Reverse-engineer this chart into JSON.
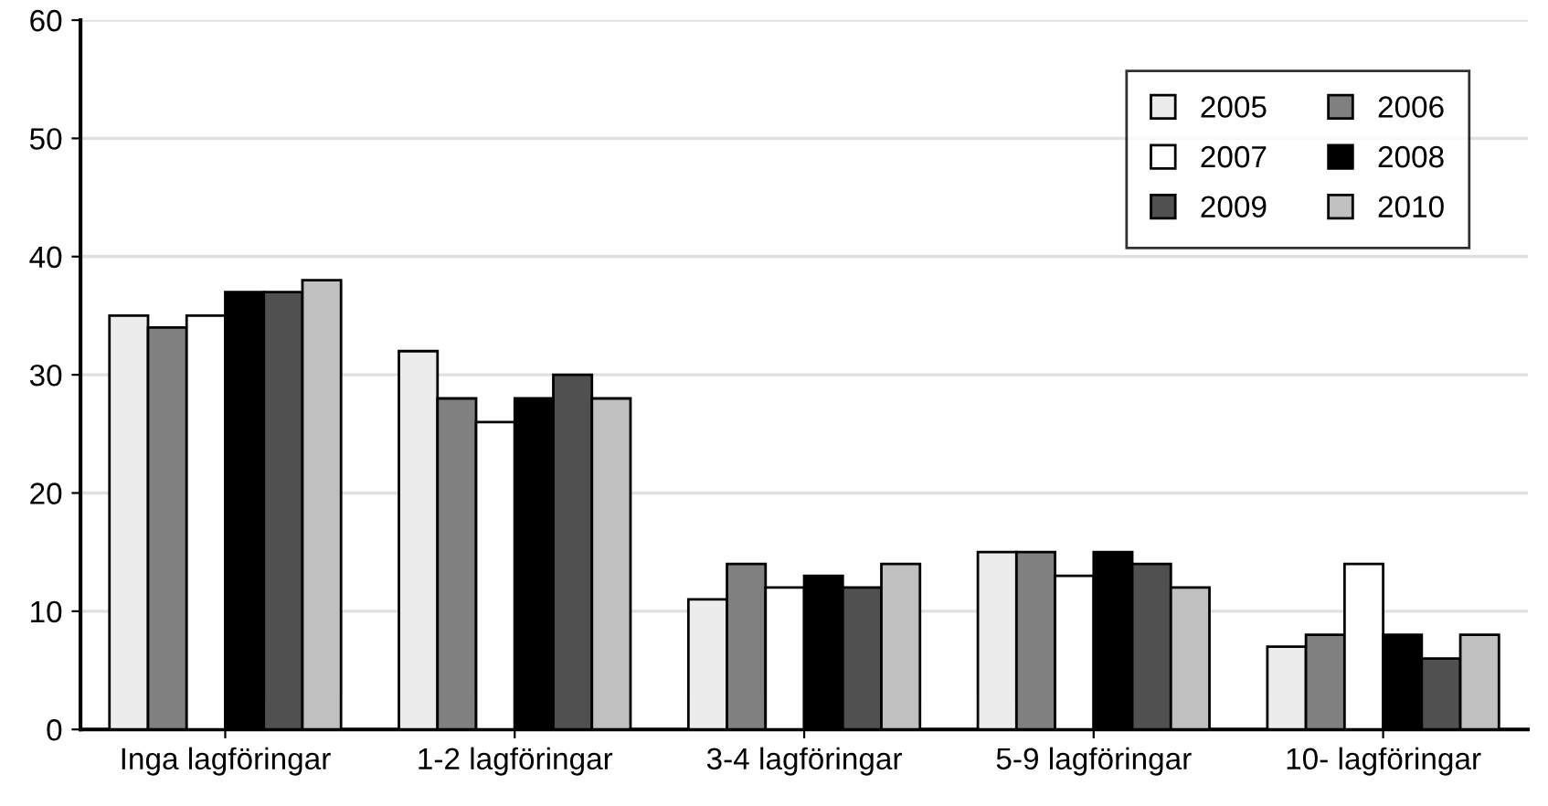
{
  "chart_data": {
    "type": "bar",
    "categories": [
      "Inga lagföringar",
      "1-2 lagföringar",
      "3-4 lagföringar",
      "5-9 lagföringar",
      "10- lagföringar"
    ],
    "series": [
      {
        "name": "2005",
        "color": "#ececec",
        "values": [
          35,
          32,
          11,
          15,
          7
        ]
      },
      {
        "name": "2006",
        "color": "#808080",
        "values": [
          34,
          28,
          14,
          15,
          8
        ]
      },
      {
        "name": "2007",
        "color": "#ffffff",
        "values": [
          35,
          26,
          12,
          13,
          14
        ]
      },
      {
        "name": "2008",
        "color": "#000000",
        "values": [
          37,
          28,
          13,
          15,
          8
        ]
      },
      {
        "name": "2009",
        "color": "#505050",
        "values": [
          37,
          30,
          12,
          14,
          6
        ]
      },
      {
        "name": "2010",
        "color": "#c0c0c0",
        "values": [
          38,
          28,
          14,
          12,
          8
        ]
      }
    ],
    "ylim": [
      0,
      60
    ],
    "yticks": [
      0,
      10,
      20,
      30,
      40,
      50,
      60
    ],
    "grid": "y",
    "legend": "top right"
  }
}
